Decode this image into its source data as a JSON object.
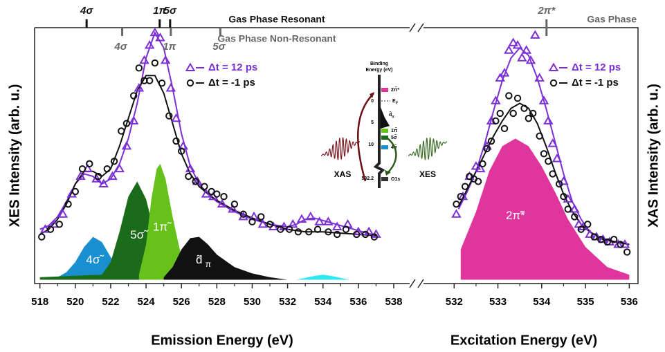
{
  "chart_data": [
    {
      "type": "scatter",
      "xlabel": "Emission Energy (eV)",
      "ylabel": "XES Intensity (arb. u.)",
      "xlim": [
        517.7,
        538.9
      ],
      "ylim": [
        -1.5,
        100
      ],
      "xticks": [
        518,
        520,
        522,
        524,
        526,
        528,
        530,
        532,
        534,
        536,
        538
      ],
      "xminorticks": [
        519,
        521,
        523,
        525,
        527,
        529,
        531,
        533,
        535,
        537
      ],
      "top_groups": [
        {
          "title": "Gas Phase Resonant",
          "color": "#111111",
          "side": "above",
          "ticks": [
            {
              "label": "4σ",
              "x": 520.64
            },
            {
              "label": "1π",
              "x": 524.77
            },
            {
              "label": "5σ",
              "x": 525.36
            }
          ]
        },
        {
          "title": "Gas Phase Non-Resonant",
          "color": "#666666",
          "side": "below",
          "ticks": [
            {
              "label": "4σ",
              "x": 522.65
            },
            {
              "label": "1π",
              "x": 525.4
            },
            {
              "label": "5σ",
              "x": 528.2
            }
          ]
        }
      ],
      "components": [
        {
          "label": "4σ̃",
          "color": "#1a8fd0",
          "x": [
            519,
            519.5,
            520,
            520.5,
            521,
            521.5,
            522,
            522.5,
            523
          ],
          "values": [
            1,
            3,
            7,
            13,
            17,
            15,
            9,
            4,
            1
          ]
        },
        {
          "label": "5σ̃",
          "color": "#1a6b1a",
          "x": [
            518,
            521.5,
            522,
            522.5,
            523,
            523.5,
            524,
            524.5,
            525,
            525.5
          ],
          "values": [
            1,
            2,
            7,
            19,
            33,
            39,
            32,
            18,
            7,
            2
          ]
        },
        {
          "label": "1π̃",
          "color": "#66c21a",
          "x": [
            523.6,
            524,
            524.3,
            524.6,
            524.8,
            525.1,
            525.5,
            526,
            526.5
          ],
          "values": [
            2,
            14,
            32,
            44,
            46,
            40,
            25,
            9,
            2
          ]
        },
        {
          "label": "d̃",
          "sub": "π",
          "color": "#111111",
          "x": [
            525,
            525.5,
            526,
            526.5,
            527,
            527.5,
            528,
            529,
            530,
            531,
            532
          ],
          "values": [
            1,
            5,
            12,
            16.5,
            17,
            14,
            10,
            5,
            2.5,
            1,
            0
          ]
        },
        {
          "color": "#2de8f0",
          "x": [
            532.5,
            533.5,
            534,
            534.5,
            535.5
          ],
          "values": [
            0,
            1.5,
            2,
            1.5,
            0
          ]
        }
      ],
      "series": [
        {
          "name": "Δt = 12 ps",
          "color": "#7b2fd4",
          "marker": "triangle",
          "x": [
            518.3,
            518.8,
            519.3,
            519.8,
            520.3,
            520.7,
            521.2,
            521.6,
            522.1,
            522.5,
            522.9,
            523.3,
            523.6,
            523.9,
            524.2,
            524.5,
            524.8,
            525.1,
            525.4,
            525.7,
            526.1,
            526.5,
            526.9,
            527.4,
            527.8,
            528.3,
            528.9,
            529.5,
            530.1,
            530.6,
            531.2,
            531.8,
            532.3,
            532.8,
            533.3,
            533.8,
            534.3,
            534.8,
            535.4,
            536.0,
            536.6,
            537.0
          ],
          "values": [
            20,
            22,
            26,
            34,
            41,
            44,
            40,
            38,
            41,
            44,
            53,
            63,
            76,
            87,
            93,
            98,
            96,
            87,
            76,
            64,
            53,
            44,
            39,
            34,
            33,
            30,
            28,
            25,
            25,
            22,
            21,
            21,
            22,
            24,
            25,
            23,
            23,
            21,
            22,
            19,
            19,
            18
          ],
          "fit_x": [
            518,
            518.5,
            519,
            519.5,
            520,
            520.5,
            521,
            521.5,
            522,
            522.5,
            523,
            523.5,
            524,
            524.5,
            525,
            525.5,
            526,
            526.5,
            527,
            527.5,
            528,
            529,
            530,
            531,
            532,
            532.5,
            533,
            533.5,
            534,
            535,
            536,
            537
          ],
          "fit_values": [
            20,
            21.5,
            25,
            31,
            38,
            42,
            41,
            38,
            40,
            46,
            56,
            70,
            88,
            98,
            92,
            76,
            58,
            45,
            38,
            34,
            31,
            27,
            24,
            22,
            21,
            22,
            24,
            24.5,
            23.5,
            21.5,
            19.5,
            17.5
          ]
        },
        {
          "name": "Δt = -1 ps",
          "color": "#111111",
          "marker": "circle",
          "x": [
            518.1,
            518.6,
            519.1,
            519.6,
            520.0,
            520.4,
            520.8,
            521.3,
            521.8,
            522.2,
            522.6,
            522.9,
            523.3,
            523.6,
            523.9,
            524.2,
            524.5,
            524.9,
            525.3,
            525.7,
            526.0,
            526.4,
            526.8,
            527.3,
            527.7,
            528.0,
            528.4,
            529.0,
            529.5,
            530.0,
            530.5,
            531.0,
            531.6,
            532.1,
            532.6,
            533.2,
            533.7,
            534.3,
            534.8,
            535.3,
            535.9,
            536.4,
            536.9
          ],
          "values": [
            17,
            20,
            22,
            30,
            35,
            44,
            46,
            41,
            44,
            47,
            59,
            62,
            73,
            84,
            79,
            79,
            86,
            78,
            65,
            55,
            51,
            41,
            39,
            37,
            35,
            34,
            33,
            30,
            26,
            23,
            25,
            22,
            20,
            20,
            19,
            19,
            20,
            19,
            18,
            20,
            18,
            18,
            17
          ],
          "fit_x": [
            518,
            518.5,
            519,
            519.5,
            520,
            520.5,
            521,
            521.5,
            522,
            522.5,
            523,
            523.5,
            524,
            524.5,
            525,
            525.5,
            526,
            526.5,
            527,
            527.5,
            528,
            529,
            530,
            531,
            532,
            533,
            534,
            535,
            536,
            537
          ],
          "fit_values": [
            18,
            20,
            24,
            30,
            38,
            43,
            43,
            41,
            44,
            53,
            64,
            75,
            81,
            81,
            74,
            62,
            50,
            42,
            37,
            34,
            31.5,
            27.5,
            24.5,
            22,
            20,
            19,
            19,
            18.5,
            18,
            17.5
          ]
        }
      ]
    },
    {
      "type": "scatter",
      "xlabel": "Excitation Energy (eV)",
      "ylabel": "XAS Intensity (arb. u.)",
      "xlim": [
        531.3,
        536.2
      ],
      "ylim": [
        -1.5,
        100
      ],
      "xticks": [
        532,
        533,
        534,
        535,
        536
      ],
      "xminorticks": [
        532.5,
        533.5,
        534.5,
        535.5
      ],
      "top_groups": [
        {
          "title": "Gas Phase",
          "color": "#666666",
          "side": "both",
          "ticks": [
            {
              "label": "2π*",
              "x": 534.11
            }
          ]
        }
      ],
      "components": [
        {
          "label": "2π̃*",
          "color": "#e0359c",
          "x": [
            532.15,
            532.15,
            532.5,
            532.8,
            533.1,
            533.4,
            533.7,
            534,
            534.3,
            534.6,
            535,
            535.5,
            536
          ],
          "values": [
            0,
            12,
            27,
            43,
            53,
            56,
            53,
            45,
            35,
            24,
            13,
            5,
            2
          ]
        }
      ],
      "series": [
        {
          "name": "Δt = 12 ps",
          "color": "#7b2fd4",
          "marker": "triangle",
          "x": [
            532.05,
            532.2,
            532.35,
            532.5,
            532.6,
            532.75,
            532.85,
            532.95,
            533.05,
            533.15,
            533.25,
            533.35,
            533.45,
            533.55,
            533.65,
            533.75,
            533.85,
            533.95,
            534.05,
            534.15,
            534.25,
            534.35,
            534.5,
            534.6,
            534.75,
            534.85,
            534.95,
            535.1,
            535.25,
            535.4,
            535.55,
            535.75,
            535.9
          ],
          "values": [
            26,
            33,
            41,
            45,
            44,
            53,
            63,
            71,
            80,
            82,
            91,
            94,
            93,
            88,
            91,
            87,
            97,
            80,
            71,
            63,
            54,
            48,
            39,
            32,
            28,
            22,
            21,
            18,
            17,
            16,
            15,
            14,
            14
          ],
          "fit_x": [
            532.1,
            532.3,
            532.5,
            532.7,
            532.9,
            533.1,
            533.3,
            533.5,
            533.7,
            533.9,
            534.1,
            534.3,
            534.5,
            534.7,
            534.9,
            535.1,
            535.4,
            535.7,
            536
          ],
          "fit_values": [
            28,
            35,
            43,
            54,
            67,
            79,
            88,
            92,
            89,
            80,
            68,
            55,
            42,
            31,
            24,
            19,
            16,
            15,
            14
          ]
        },
        {
          "name": "Δt = -1 ps",
          "color": "#111111",
          "marker": "circle",
          "x": [
            532.05,
            532.15,
            532.25,
            532.35,
            532.45,
            532.55,
            532.65,
            532.75,
            532.85,
            532.95,
            533.05,
            533.15,
            533.25,
            533.35,
            533.45,
            533.6,
            533.7,
            533.8,
            533.95,
            534.05,
            534.15,
            534.25,
            534.4,
            534.5,
            534.6,
            534.75,
            534.9,
            535.05,
            535.2,
            535.35,
            535.5,
            535.65,
            535.8,
            535.95
          ],
          "values": [
            30,
            33,
            37,
            41,
            40,
            39,
            46,
            52,
            55,
            63,
            66,
            60,
            73,
            66,
            72,
            68,
            64,
            66,
            57,
            50,
            47,
            42,
            38,
            33,
            28,
            25,
            20,
            22,
            17,
            16,
            15,
            16,
            14,
            11
          ],
          "fit_x": [
            532.1,
            532.3,
            532.5,
            532.7,
            532.9,
            533.1,
            533.3,
            533.5,
            533.7,
            533.9,
            534.1,
            534.3,
            534.5,
            534.7,
            534.9,
            535.1,
            535.4,
            535.7,
            536
          ],
          "fit_values": [
            29,
            36,
            43,
            50,
            57,
            63,
            68,
            70,
            68,
            62,
            53,
            43,
            34,
            27,
            22,
            19,
            16,
            15,
            14
          ]
        }
      ]
    }
  ],
  "inset": {
    "title_lines": [
      "Binding",
      "Energy (eV)"
    ],
    "ticks": [
      "0",
      "5",
      "10",
      "532.2"
    ],
    "levels": {
      "pi_star": "2π̃*",
      "ef": "E",
      "ef_sub": "F",
      "d": "d̃",
      "d_sub": "π",
      "pi": "1π̃",
      "sigma5": "5σ̃",
      "sigma4": "4σ̃",
      "core": "O1s"
    },
    "xas": "XAS",
    "xes": "XES"
  }
}
